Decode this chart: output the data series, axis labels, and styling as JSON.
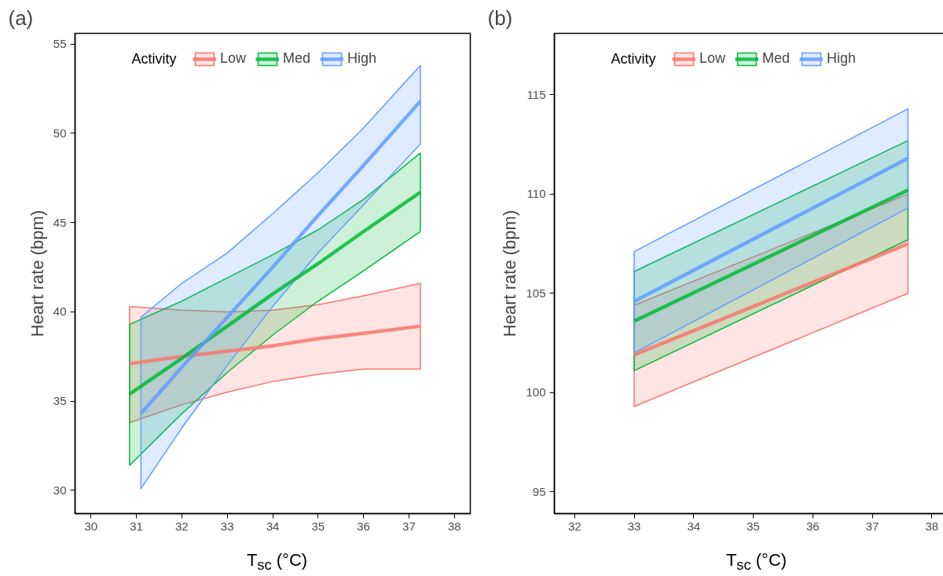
{
  "chart_data": [
    {
      "type": "line",
      "title": "(a)",
      "xlabel": "T$_{sc}$ (°C)",
      "ylabel": "Heart rate (bpm)",
      "legend_title": "Activity",
      "legend": "top",
      "grid": false,
      "xlim": [
        29.65,
        38.35
      ],
      "ylim": [
        28.7,
        55.6
      ],
      "xticks": [
        30,
        31,
        32,
        33,
        34,
        35,
        36,
        37,
        38
      ],
      "yticks": [
        30,
        35,
        40,
        45,
        50,
        55
      ],
      "series": [
        {
          "name": "Low",
          "color": "#f8766d",
          "x": [
            30.85,
            32,
            33,
            34,
            35,
            36,
            37.25
          ],
          "values": [
            37.1,
            37.5,
            37.8,
            38.1,
            38.5,
            38.8,
            39.2
          ],
          "lower": [
            33.8,
            34.8,
            35.5,
            36.1,
            36.5,
            36.8,
            36.8
          ],
          "upper": [
            40.3,
            40.1,
            40.0,
            40.1,
            40.4,
            40.9,
            41.6
          ]
        },
        {
          "name": "Med",
          "color": "#00ba38",
          "x": [
            30.85,
            32,
            33,
            34,
            35,
            36,
            37.25
          ],
          "values": [
            35.4,
            37.4,
            39.2,
            41.0,
            42.7,
            44.5,
            46.7
          ],
          "lower": [
            31.4,
            34.3,
            36.6,
            38.7,
            40.6,
            42.3,
            44.5
          ],
          "upper": [
            39.3,
            40.6,
            41.9,
            43.2,
            44.6,
            46.3,
            48.9
          ]
        },
        {
          "name": "High",
          "color": "#619cff",
          "x": [
            31.1,
            32,
            33,
            34,
            35,
            36,
            37.25
          ],
          "values": [
            34.3,
            36.9,
            39.7,
            42.5,
            45.4,
            48.2,
            51.8
          ],
          "lower": [
            30.1,
            33.5,
            37.0,
            40.3,
            43.3,
            46.0,
            49.4
          ],
          "upper": [
            39.7,
            41.6,
            43.3,
            45.5,
            47.8,
            50.3,
            53.8
          ]
        }
      ]
    },
    {
      "type": "line",
      "title": "(b)",
      "xlabel": "T$_{sc}$ (°C)",
      "ylabel": "Heart rate (bpm)",
      "legend_title": "Activity",
      "legend": "top",
      "grid": false,
      "xlim": [
        31.66,
        38.3
      ],
      "ylim": [
        93.9,
        118.1
      ],
      "xticks": [
        32,
        33,
        34,
        35,
        36,
        37,
        38
      ],
      "yticks": [
        95,
        100,
        105,
        110,
        115
      ],
      "series": [
        {
          "name": "Low",
          "color": "#f8766d",
          "x": [
            33,
            37.6
          ],
          "values": [
            101.9,
            107.5
          ],
          "lower": [
            99.3,
            105.0
          ],
          "upper": [
            104.4,
            110.0
          ]
        },
        {
          "name": "Med",
          "color": "#00ba38",
          "x": [
            33,
            37.6
          ],
          "values": [
            103.6,
            110.2
          ],
          "lower": [
            101.1,
            107.7
          ],
          "upper": [
            106.1,
            112.7
          ]
        },
        {
          "name": "High",
          "color": "#619cff",
          "x": [
            33,
            37.6
          ],
          "values": [
            104.6,
            111.8
          ],
          "lower": [
            102.0,
            109.3
          ],
          "upper": [
            107.1,
            114.3
          ]
        }
      ]
    }
  ]
}
